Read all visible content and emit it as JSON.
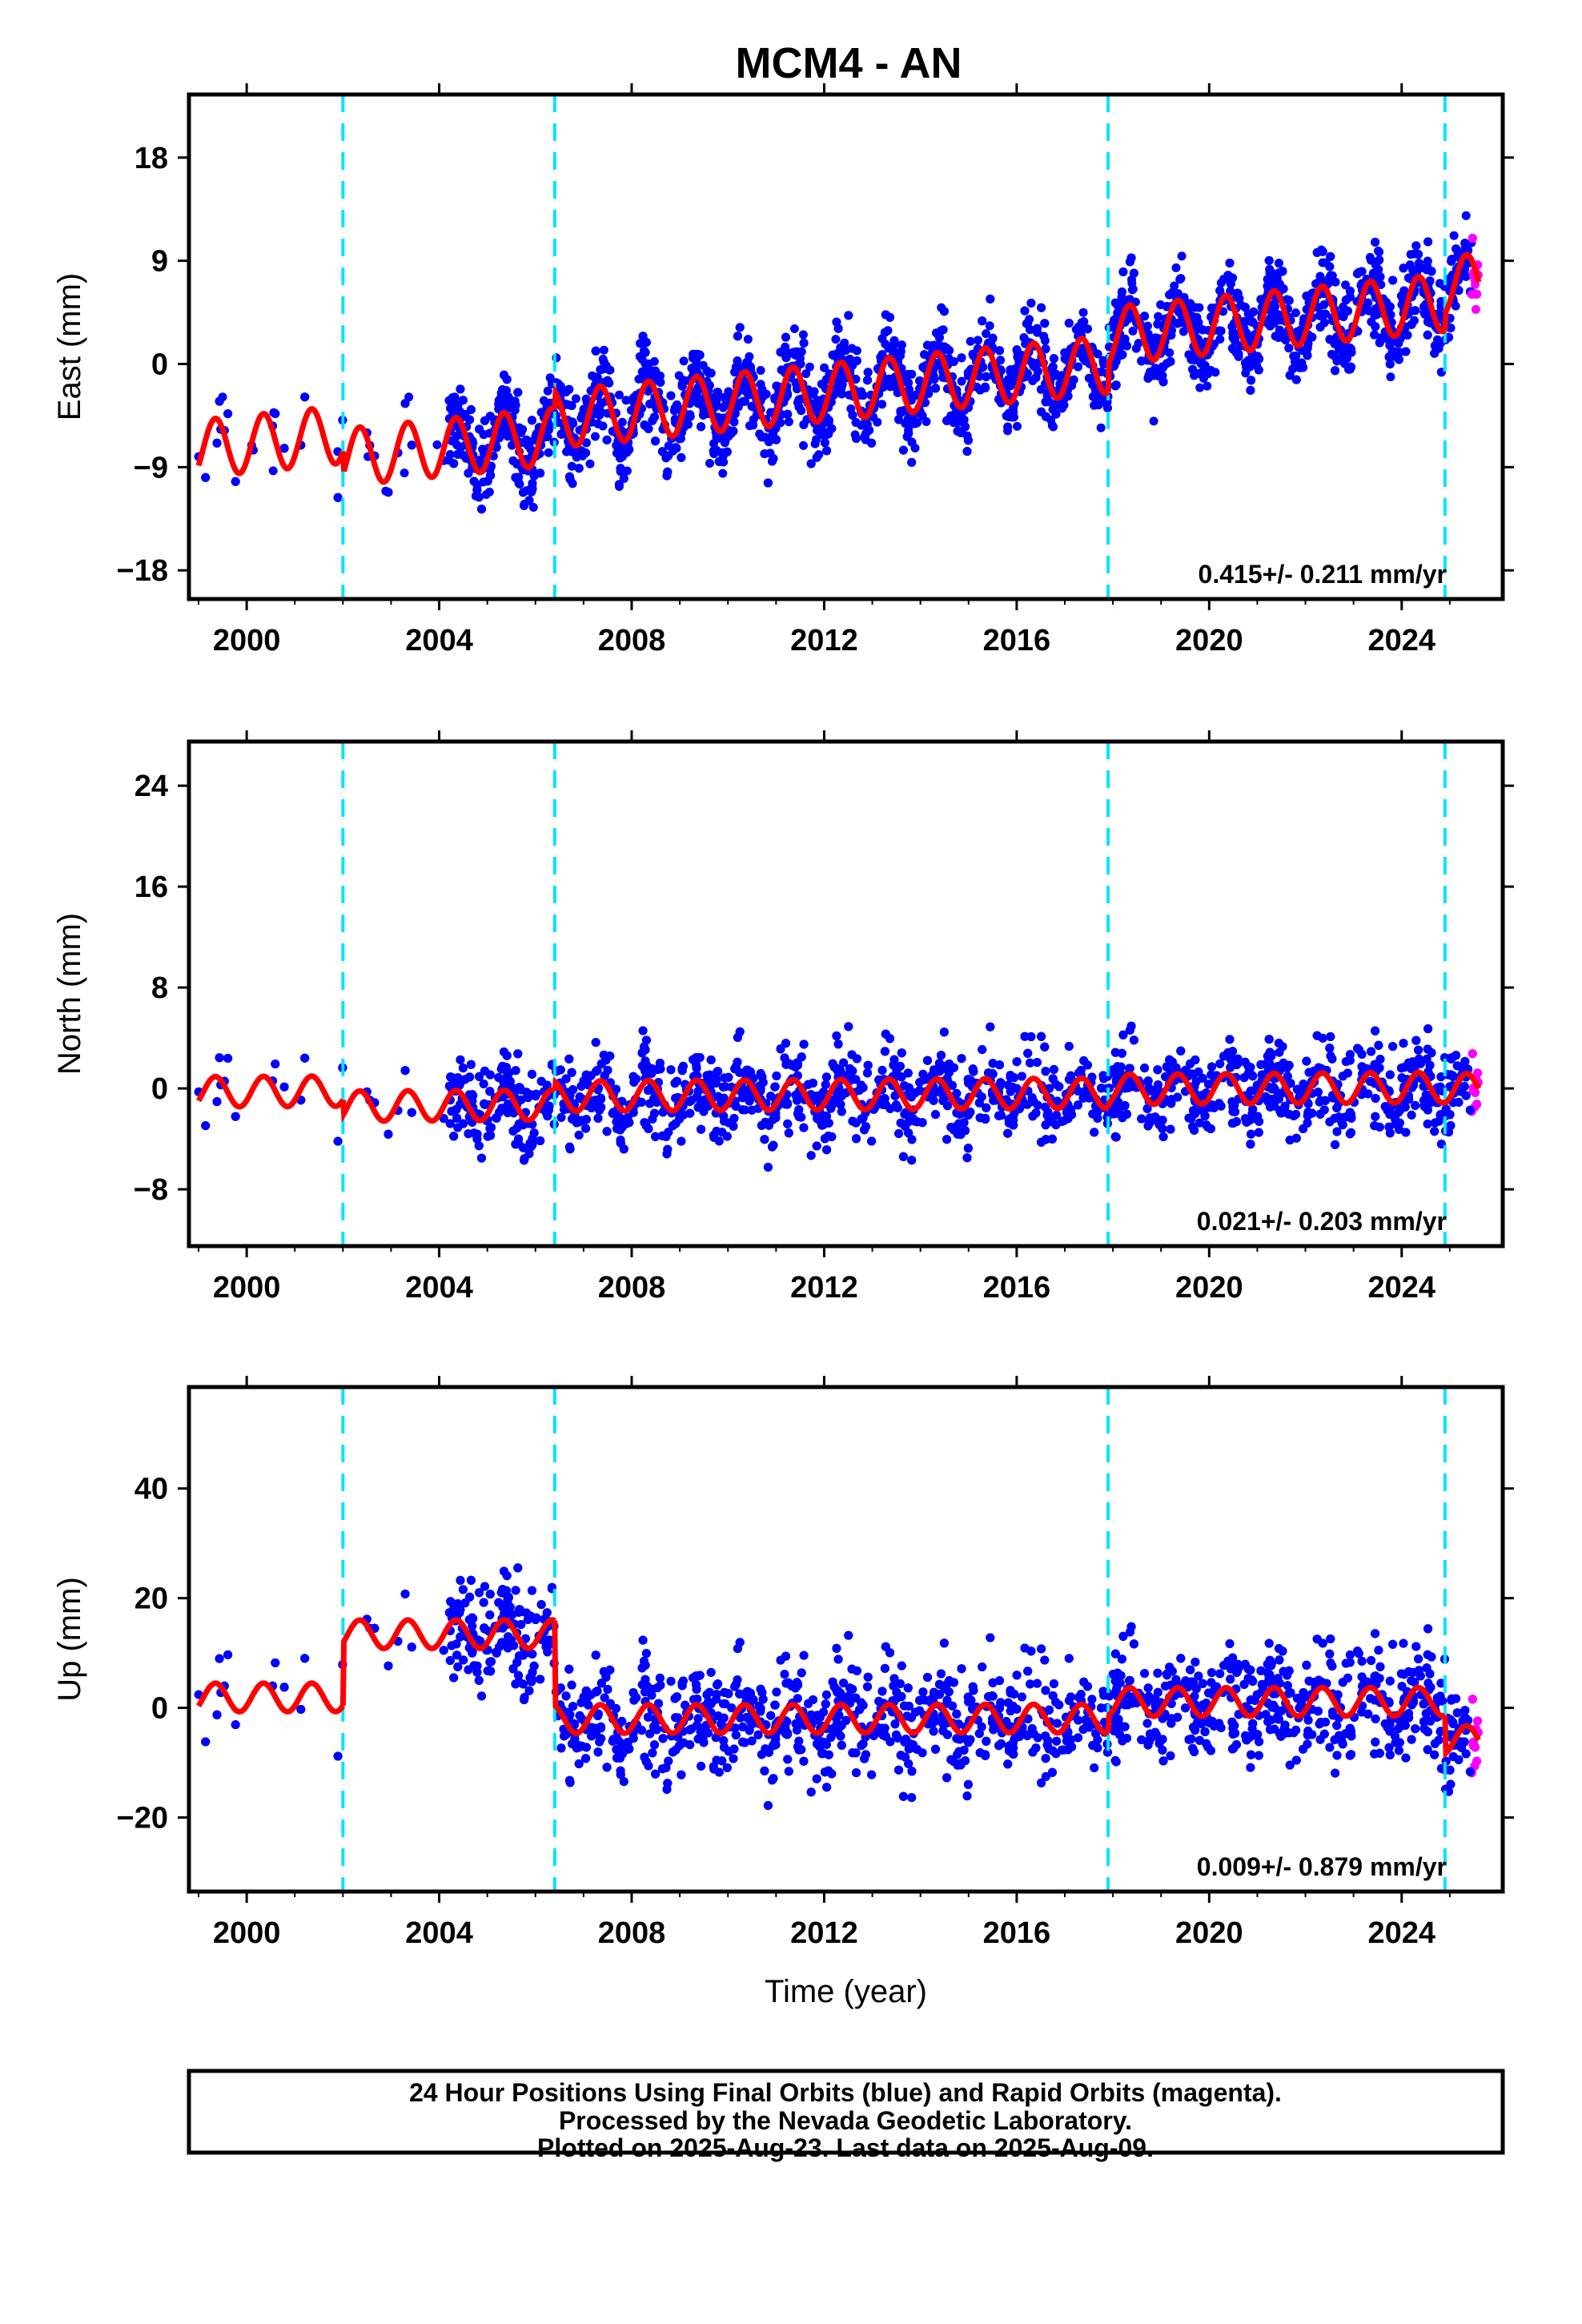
{
  "title": "MCM4 - AN",
  "colors": {
    "final_orbits": "#0000ff",
    "rapid_orbits": "#ff00ff",
    "model_fit": "#ff0000",
    "equipment_change": "#00e5ff"
  },
  "caption": {
    "line1": "24 Hour Positions Using Final Orbits (blue) and Rapid Orbits (magenta).",
    "line2": "Processed by the Nevada Geodetic Laboratory.",
    "line3": "Plotted on 2025-Aug-23. Last data on 2025-Aug-09."
  },
  "chart_data": [
    {
      "type": "scatter",
      "ylabel": "East (mm)",
      "xlabel": "",
      "xlim": [
        1998.8,
        2026.1
      ],
      "ylim": [
        -20.5,
        23.5
      ],
      "xticks": [
        2000,
        2004,
        2008,
        2012,
        2016,
        2020,
        2024
      ],
      "yticks": [
        -18,
        -9,
        0,
        9,
        18
      ],
      "rate_label": "0.415+/- 0.211 mm/yr",
      "equipment_changes": [
        2002.0,
        2006.4,
        2017.9,
        2024.9
      ],
      "model": {
        "segments": [
          {
            "from": 1999.0,
            "to": 2002.0,
            "offset": -2.0,
            "trend": 0.415,
            "amplitude": 2.5
          },
          {
            "from": 2002.0,
            "to": 2006.4,
            "offset": -4.0,
            "trend": 0.415,
            "amplitude": 2.5
          },
          {
            "from": 2006.4,
            "to": 2017.9,
            "offset": -2.5,
            "trend": 0.415,
            "amplitude": 2.5
          },
          {
            "from": 2017.9,
            "to": 2024.9,
            "offset": 0.0,
            "trend": 0.415,
            "amplitude": 2.5
          },
          {
            "from": 2024.9,
            "to": 2025.6,
            "offset": 1.5,
            "trend": 0.415,
            "amplitude": 2.5
          }
        ]
      },
      "scatter_generator": {
        "start": 1999.0,
        "end": 2025.6,
        "spread": 2.6,
        "density": 240
      }
    },
    {
      "type": "scatter",
      "ylabel": "North (mm)",
      "xlabel": "",
      "xlim": [
        1998.8,
        2026.1
      ],
      "ylim": [
        -12.5,
        27.5
      ],
      "xticks": [
        2000,
        2004,
        2008,
        2012,
        2016,
        2020,
        2024
      ],
      "yticks": [
        -8,
        0,
        8,
        16,
        24
      ],
      "rate_label": "0.021+/- 0.203 mm/yr",
      "equipment_changes": [
        2002.0,
        2006.4,
        2017.9,
        2024.9
      ],
      "model": {
        "segments": [
          {
            "from": 1999.0,
            "to": 2002.0,
            "offset": 0.0,
            "trend": 0.021,
            "amplitude": 1.2
          },
          {
            "from": 2002.0,
            "to": 2006.4,
            "offset": -1.2,
            "trend": 0.021,
            "amplitude": 1.2
          },
          {
            "from": 2006.4,
            "to": 2017.9,
            "offset": -0.5,
            "trend": 0.021,
            "amplitude": 1.2
          },
          {
            "from": 2017.9,
            "to": 2024.9,
            "offset": -0.2,
            "trend": 0.021,
            "amplitude": 1.2
          },
          {
            "from": 2024.9,
            "to": 2025.6,
            "offset": -0.3,
            "trend": 0.021,
            "amplitude": 1.2
          }
        ]
      },
      "scatter_generator": {
        "start": 1999.0,
        "end": 2025.6,
        "spread": 2.4,
        "density": 240
      }
    },
    {
      "type": "scatter",
      "ylabel": "Up (mm)",
      "xlabel": "Time (year)",
      "xlim": [
        1998.8,
        2026.1
      ],
      "ylim": [
        -33.5,
        58.5
      ],
      "xticks": [
        2000,
        2004,
        2008,
        2012,
        2016,
        2020,
        2024
      ],
      "yticks": [
        -20,
        0,
        20,
        40
      ],
      "rate_label": "0.009+/- 0.879 mm/yr",
      "equipment_changes": [
        2002.0,
        2006.4,
        2017.9,
        2024.9
      ],
      "model": {
        "segments": [
          {
            "from": 1999.0,
            "to": 2002.0,
            "offset": 2.0,
            "trend": 0.009,
            "amplitude": 2.6
          },
          {
            "from": 2002.0,
            "to": 2006.4,
            "offset": 13.5,
            "trend": 0.009,
            "amplitude": 2.6
          },
          {
            "from": 2006.4,
            "to": 2017.9,
            "offset": -2.0,
            "trend": 0.009,
            "amplitude": 2.6
          },
          {
            "from": 2017.9,
            "to": 2024.9,
            "offset": 1.0,
            "trend": 0.009,
            "amplitude": 2.6
          },
          {
            "from": 2024.9,
            "to": 2025.6,
            "offset": -6.0,
            "trend": 0.009,
            "amplitude": 2.6
          }
        ]
      },
      "scatter_generator": {
        "start": 1999.0,
        "end": 2025.6,
        "spread": 7.0,
        "density": 240
      }
    }
  ]
}
